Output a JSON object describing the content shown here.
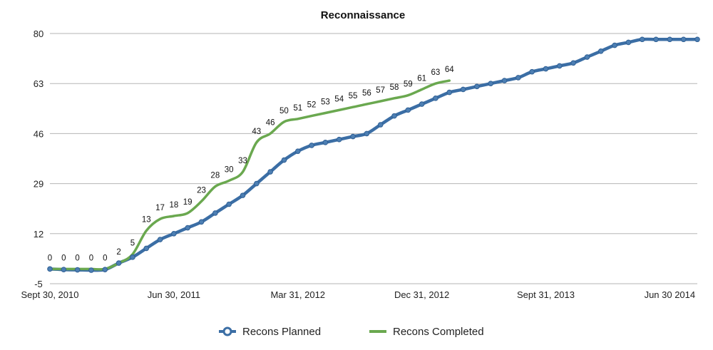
{
  "chart_data": {
    "type": "line",
    "title": "Reconnaissance",
    "xlabel": "",
    "ylabel": "",
    "ylim": [
      -5,
      80
    ],
    "yticks": [
      -5,
      12,
      29,
      46,
      63,
      80
    ],
    "xtick_labels": [
      "Sept 30, 2010",
      "Jun 30, 2011",
      "Mar 31, 2012",
      "Dec 31, 2012",
      "Sept 31, 2013",
      "Jun 30 2014"
    ],
    "xtick_index": [
      0,
      9,
      18,
      27,
      36,
      45
    ],
    "grid": "horizontal",
    "legend_placement": "bottom",
    "series": [
      {
        "name": "Recons Planned",
        "color": "#3b6ea5",
        "marker": "circle",
        "values": [
          0,
          -0.2,
          -0.3,
          -0.4,
          -0.2,
          2,
          4,
          7,
          10,
          12,
          14,
          16,
          19,
          22,
          25,
          29,
          33,
          37,
          40,
          42,
          43,
          44,
          45,
          46,
          49,
          52,
          54,
          56,
          58,
          60,
          61,
          62,
          63,
          64,
          65,
          67,
          68,
          69,
          70,
          72,
          74,
          76,
          77,
          78,
          78,
          78,
          78,
          78
        ]
      },
      {
        "name": "Recons Completed",
        "color": "#6aa84f",
        "values": [
          0,
          0,
          0,
          0,
          0,
          2,
          5,
          13,
          17,
          18,
          19,
          23,
          28,
          30,
          33,
          43,
          46,
          50,
          51,
          52,
          53,
          54,
          55,
          56,
          57,
          58,
          59,
          61,
          63,
          64
        ],
        "data_labels": [
          "0",
          "0",
          "0",
          "0",
          "0",
          "2",
          "5",
          "13",
          "17",
          "18",
          "19",
          "23",
          "28",
          "30",
          "33",
          "43",
          "46",
          "50",
          "51",
          "52",
          "53",
          "54",
          "55",
          "56",
          "57",
          "58",
          "59",
          "61",
          "63",
          "64"
        ]
      }
    ]
  }
}
